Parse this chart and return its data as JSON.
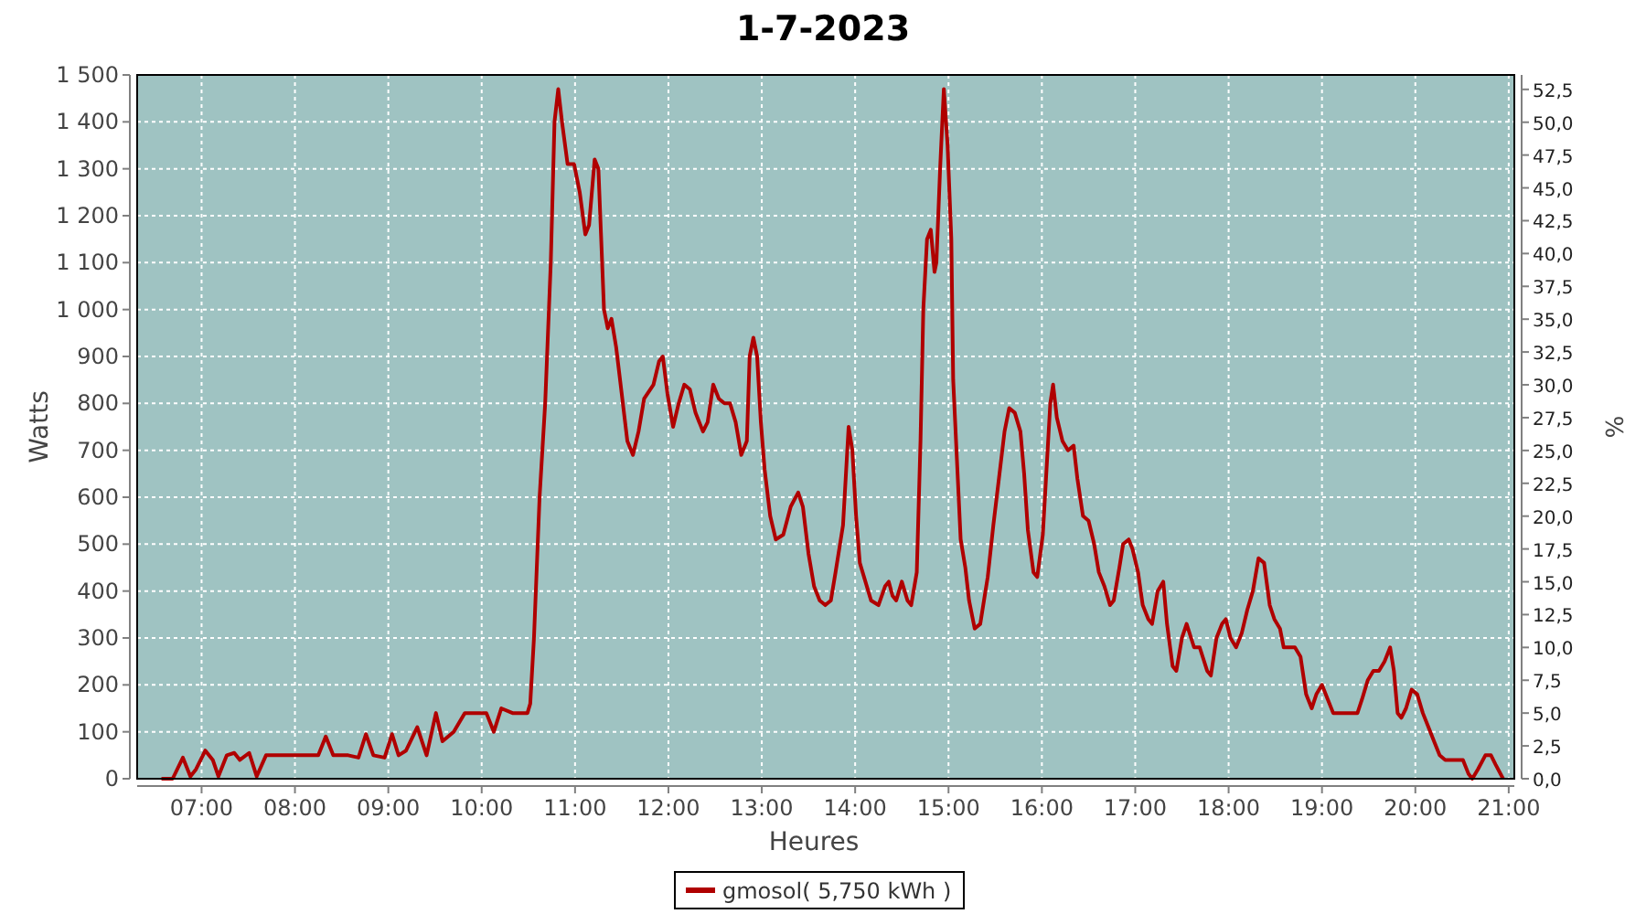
{
  "chart_data": {
    "type": "line",
    "title": "1-7-2023",
    "xlabel": "Heures",
    "ylabel": "Watts",
    "y2label": "%",
    "x": [
      6.57,
      6.69,
      6.8,
      6.88,
      6.94,
      7.04,
      7.12,
      7.18,
      7.27,
      7.35,
      7.41,
      7.51,
      7.59,
      7.69,
      7.78,
      8.14,
      8.25,
      8.33,
      8.41,
      8.57,
      8.68,
      8.76,
      8.84,
      8.96,
      9.04,
      9.11,
      9.19,
      9.31,
      9.41,
      9.51,
      9.58,
      9.7,
      9.82,
      9.98,
      10.05,
      10.13,
      10.21,
      10.33,
      10.49,
      10.52,
      10.56,
      10.62,
      10.68,
      10.74,
      10.78,
      10.82,
      10.86,
      10.92,
      10.99,
      11.05,
      11.11,
      11.15,
      11.21,
      11.25,
      11.31,
      11.35,
      11.39,
      11.44,
      11.5,
      11.56,
      11.62,
      11.68,
      11.74,
      11.84,
      11.9,
      11.94,
      11.99,
      12.05,
      12.11,
      12.17,
      12.23,
      12.29,
      12.37,
      12.42,
      12.48,
      12.54,
      12.6,
      12.66,
      12.72,
      12.78,
      12.84,
      12.87,
      12.91,
      12.95,
      12.99,
      13.03,
      13.09,
      13.15,
      13.23,
      13.31,
      13.39,
      13.44,
      13.5,
      13.56,
      13.62,
      13.68,
      13.74,
      13.79,
      13.87,
      13.91,
      13.93,
      13.97,
      14.01,
      14.05,
      14.11,
      14.17,
      14.25,
      14.32,
      14.36,
      14.4,
      14.44,
      14.5,
      14.56,
      14.6,
      14.66,
      14.7,
      14.73,
      14.77,
      14.81,
      14.85,
      14.87,
      14.91,
      14.95,
      14.99,
      15.03,
      15.05,
      15.09,
      15.13,
      15.18,
      15.22,
      15.28,
      15.34,
      15.38,
      15.42,
      15.48,
      15.54,
      15.6,
      15.65,
      15.71,
      15.77,
      15.81,
      15.85,
      15.91,
      15.95,
      16.01,
      16.05,
      16.09,
      16.12,
      16.16,
      16.22,
      16.28,
      16.34,
      16.38,
      16.44,
      16.5,
      16.56,
      16.61,
      16.67,
      16.73,
      16.77,
      16.83,
      16.87,
      16.93,
      16.97,
      17.03,
      17.08,
      17.14,
      17.18,
      17.24,
      17.3,
      17.34,
      17.4,
      17.44,
      17.5,
      17.55,
      17.63,
      17.69,
      17.77,
      17.81,
      17.87,
      17.93,
      17.97,
      18.02,
      18.08,
      18.14,
      18.2,
      18.26,
      18.32,
      18.38,
      18.44,
      18.49,
      18.55,
      18.59,
      18.71,
      18.77,
      18.83,
      18.89,
      18.94,
      19.0,
      19.06,
      19.12,
      19.24,
      19.32,
      19.38,
      19.43,
      19.49,
      19.55,
      19.61,
      19.67,
      19.73,
      19.77,
      19.81,
      19.85,
      19.9,
      19.96,
      20.02,
      20.08,
      20.14,
      20.2,
      20.26,
      20.32,
      20.43,
      20.51,
      20.57,
      20.61,
      20.67,
      20.75,
      20.81,
      20.86,
      20.94
    ],
    "series": [
      {
        "name": "gmosol( 5,750 kWh )",
        "color": "#b00000",
        "values": [
          0,
          0,
          45,
          5,
          20,
          60,
          40,
          5,
          50,
          55,
          40,
          55,
          5,
          50,
          50,
          50,
          50,
          90,
          50,
          50,
          45,
          95,
          50,
          45,
          95,
          50,
          60,
          110,
          50,
          140,
          80,
          100,
          140,
          140,
          140,
          100,
          150,
          140,
          140,
          160,
          300,
          600,
          800,
          1100,
          1400,
          1470,
          1400,
          1310,
          1310,
          1250,
          1160,
          1180,
          1320,
          1300,
          1000,
          960,
          980,
          920,
          820,
          720,
          690,
          740,
          810,
          840,
          890,
          900,
          820,
          750,
          800,
          840,
          830,
          780,
          740,
          760,
          840,
          810,
          800,
          800,
          760,
          690,
          720,
          900,
          940,
          900,
          760,
          660,
          560,
          510,
          520,
          580,
          610,
          580,
          480,
          410,
          380,
          370,
          380,
          440,
          540,
          680,
          750,
          700,
          560,
          460,
          420,
          380,
          370,
          410,
          420,
          390,
          380,
          420,
          380,
          370,
          440,
          720,
          1000,
          1150,
          1170,
          1080,
          1100,
          1300,
          1470,
          1350,
          1150,
          850,
          680,
          510,
          450,
          380,
          320,
          330,
          380,
          430,
          540,
          640,
          740,
          790,
          780,
          740,
          650,
          530,
          440,
          430,
          520,
          660,
          800,
          840,
          770,
          720,
          700,
          710,
          640,
          560,
          550,
          500,
          440,
          410,
          370,
          380,
          450,
          500,
          510,
          490,
          440,
          370,
          340,
          330,
          400,
          420,
          330,
          240,
          230,
          300,
          330,
          280,
          280,
          230,
          220,
          300,
          330,
          340,
          300,
          280,
          310,
          360,
          400,
          470,
          460,
          370,
          340,
          320,
          280,
          280,
          260,
          180,
          150,
          180,
          200,
          170,
          140,
          140,
          140,
          140,
          170,
          210,
          230,
          230,
          250,
          280,
          230,
          140,
          130,
          150,
          190,
          180,
          140,
          110,
          80,
          50,
          40,
          40,
          40,
          10,
          0,
          20,
          50,
          50,
          30,
          0
        ]
      }
    ],
    "xlim": [
      6.31,
      21.06
    ],
    "xticks": [
      {
        "value": 7,
        "label": "07:00"
      },
      {
        "value": 8,
        "label": "08:00"
      },
      {
        "value": 9,
        "label": "09:00"
      },
      {
        "value": 10,
        "label": "10:00"
      },
      {
        "value": 11,
        "label": "11:00"
      },
      {
        "value": 12,
        "label": "12:00"
      },
      {
        "value": 13,
        "label": "13:00"
      },
      {
        "value": 14,
        "label": "14:00"
      },
      {
        "value": 15,
        "label": "15:00"
      },
      {
        "value": 16,
        "label": "16:00"
      },
      {
        "value": 17,
        "label": "17:00"
      },
      {
        "value": 18,
        "label": "18:00"
      },
      {
        "value": 19,
        "label": "19:00"
      },
      {
        "value": 20,
        "label": "20:00"
      },
      {
        "value": 21,
        "label": "21:00"
      }
    ],
    "ylim": [
      0,
      1500
    ],
    "yticks": [
      0,
      100,
      200,
      300,
      400,
      500,
      600,
      700,
      800,
      900,
      {
        "value": 1000,
        "label": "1 000"
      },
      {
        "value": 1100,
        "label": "1 100"
      },
      {
        "value": 1200,
        "label": "1 200"
      },
      {
        "value": 1300,
        "label": "1 300"
      },
      {
        "value": 1400,
        "label": "1 400"
      },
      {
        "value": 1500,
        "label": "1 500"
      }
    ],
    "y2lim": [
      0,
      53.6
    ],
    "y2ticks": [
      {
        "value": 0,
        "label": "0,0"
      },
      {
        "value": 2.5,
        "label": "2,5"
      },
      {
        "value": 5,
        "label": "5,0"
      },
      {
        "value": 7.5,
        "label": "7,5"
      },
      {
        "value": 10,
        "label": "10,0"
      },
      {
        "value": 12.5,
        "label": "12,5"
      },
      {
        "value": 15,
        "label": "15,0"
      },
      {
        "value": 17.5,
        "label": "17,5"
      },
      {
        "value": 20,
        "label": "20,0"
      },
      {
        "value": 22.5,
        "label": "22,5"
      },
      {
        "value": 25,
        "label": "25,0"
      },
      {
        "value": 27.5,
        "label": "27,5"
      },
      {
        "value": 30,
        "label": "30,0"
      },
      {
        "value": 32.5,
        "label": "32,5"
      },
      {
        "value": 35,
        "label": "35,0"
      },
      {
        "value": 37.5,
        "label": "37,5"
      },
      {
        "value": 40,
        "label": "40,0"
      },
      {
        "value": 42.5,
        "label": "42,5"
      },
      {
        "value": 45,
        "label": "45,0"
      },
      {
        "value": 47.5,
        "label": "47,5"
      },
      {
        "value": 50,
        "label": "50,0"
      },
      {
        "value": 52.5,
        "label": "52,5"
      }
    ],
    "grid": true,
    "legend": "bottom",
    "marker": "none",
    "line_style": "solid"
  }
}
